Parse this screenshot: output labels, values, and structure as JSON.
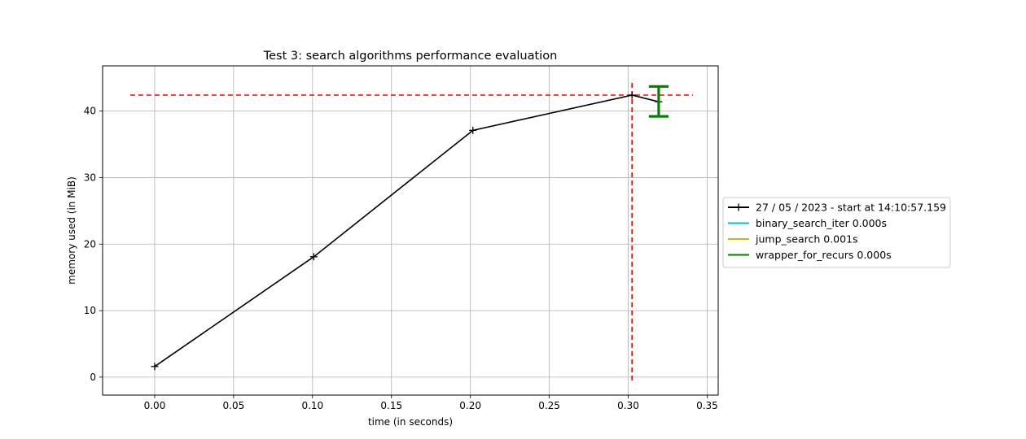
{
  "chart_data": {
    "type": "line",
    "title": "Test 3: search algorithms performance evaluation",
    "xlabel": "time (in seconds)",
    "ylabel": "memory used (in MiB)",
    "xlim": [
      -0.033,
      0.357
    ],
    "ylim": [
      -2.7,
      46.8
    ],
    "xticks": [
      0.0,
      0.05,
      0.1,
      0.15,
      0.2,
      0.25,
      0.3,
      0.35
    ],
    "xtick_labels": [
      "0.00",
      "0.05",
      "0.10",
      "0.15",
      "0.20",
      "0.25",
      "0.30",
      "0.35"
    ],
    "yticks": [
      0,
      10,
      20,
      30,
      40
    ],
    "ytick_labels": [
      "0",
      "10",
      "20",
      "30",
      "40"
    ],
    "grid": true,
    "legend_position": "center-right outside",
    "series": [
      {
        "name": "27 / 05 / 2023 - start at 14:10:57.159",
        "color": "#000000",
        "marker": "+",
        "x": [
          0.0,
          0.1008,
          0.2016,
          0.3024,
          0.3193
        ],
        "y": [
          1.6,
          18.1,
          37.1,
          42.4,
          41.4
        ]
      }
    ],
    "function_brackets": [
      {
        "name": "binary_search_iter 0.000s",
        "color": "#00bfbf",
        "x_start": 0.3193,
        "x_end": 0.3193,
        "y_low": 39.2,
        "y_high": 43.7
      },
      {
        "name": "jump_search 0.001s",
        "color": "#bfbf00",
        "x_start": 0.3193,
        "x_end": 0.3193,
        "y_low": 39.2,
        "y_high": 43.7
      },
      {
        "name": "wrapper_for_recurs 0.000s",
        "color": "#008000",
        "x_start": 0.3193,
        "x_end": 0.3193,
        "y_low": 39.2,
        "y_high": 43.7
      }
    ],
    "max_lines": {
      "color": "#ff0000",
      "y": 42.4,
      "x": 0.3024,
      "x_range": [
        -0.0155,
        0.341
      ],
      "y_range": [
        -0.5,
        44.5
      ]
    }
  }
}
